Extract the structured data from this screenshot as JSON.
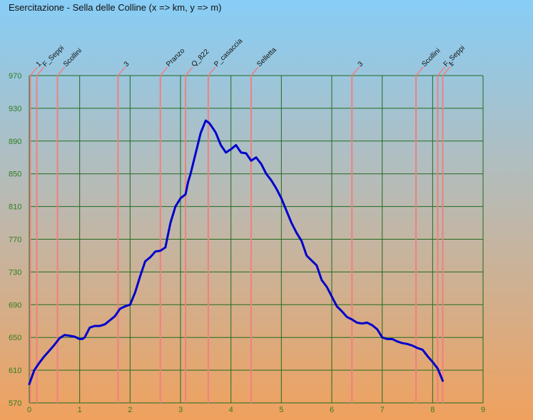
{
  "chart_data": {
    "type": "line",
    "title": "Esercitazione - Sella delle Colline (x => km, y => m)",
    "xlim": [
      0,
      9
    ],
    "ylim": [
      570,
      970
    ],
    "xticks": [
      "0",
      "1",
      "2",
      "3",
      "4",
      "5",
      "6",
      "7",
      "8",
      "9"
    ],
    "yticks": [
      "570",
      "610",
      "650",
      "690",
      "730",
      "770",
      "810",
      "850",
      "890",
      "930",
      "970"
    ],
    "grid": true,
    "colors": {
      "line": "#0000cc",
      "grid": "#1f6b1f",
      "marker": "#f08080",
      "tick": "#2e7d1f"
    },
    "markers": [
      {
        "label": "1",
        "x": 0.02
      },
      {
        "label": "F_Seppi",
        "x": 0.15
      },
      {
        "label": "Scollini",
        "x": 0.56
      },
      {
        "label": "3",
        "x": 1.76
      },
      {
        "label": "Pranzo",
        "x": 2.6
      },
      {
        "label": "Q_822",
        "x": 3.1
      },
      {
        "label": "P_casaccia",
        "x": 3.55
      },
      {
        "label": "Selletta",
        "x": 4.4
      },
      {
        "label": "3",
        "x": 6.4
      },
      {
        "label": "Scollini",
        "x": 7.67
      },
      {
        "label": "F_Seppi",
        "x": 8.1
      },
      {
        "label": "1",
        "x": 8.2
      }
    ],
    "series": [
      {
        "x": [
          0,
          0.1,
          0.2,
          0.3,
          0.4,
          0.5,
          0.6,
          0.7,
          0.8,
          0.9,
          1.0,
          1.05,
          1.1,
          1.2,
          1.3,
          1.4,
          1.5,
          1.6,
          1.7,
          1.8,
          1.9,
          2.0,
          2.1,
          2.2,
          2.3,
          2.4,
          2.5,
          2.6,
          2.7,
          2.75,
          2.8,
          2.9,
          3.0,
          3.1,
          3.15,
          3.2,
          3.3,
          3.4,
          3.5,
          3.57,
          3.65,
          3.7,
          3.8,
          3.9,
          4.0,
          4.1,
          4.2,
          4.3,
          4.4,
          4.5,
          4.6,
          4.7,
          4.8,
          4.9,
          5.0,
          5.1,
          5.2,
          5.3,
          5.4,
          5.5,
          5.6,
          5.7,
          5.8,
          5.9,
          6.0,
          6.1,
          6.2,
          6.3,
          6.4,
          6.5,
          6.6,
          6.7,
          6.8,
          6.9,
          7.0,
          7.1,
          7.2,
          7.3,
          7.4,
          7.5,
          7.6,
          7.7,
          7.8,
          7.9,
          8.0,
          8.1,
          8.2
        ],
        "y": [
          593,
          610,
          619,
          627,
          634,
          641,
          649,
          653,
          652,
          651,
          648,
          648,
          650,
          662,
          664,
          664,
          666,
          671,
          676,
          685,
          688,
          690,
          705,
          725,
          743,
          748,
          755,
          756,
          760,
          775,
          790,
          810,
          820,
          825,
          840,
          850,
          875,
          900,
          915,
          912,
          905,
          900,
          885,
          876,
          880,
          885,
          876,
          875,
          866,
          870,
          862,
          850,
          842,
          832,
          820,
          805,
          790,
          778,
          768,
          750,
          744,
          738,
          720,
          712,
          700,
          688,
          682,
          675,
          672,
          668,
          667,
          668,
          665,
          660,
          650,
          648,
          648,
          645,
          643,
          642,
          640,
          637,
          635,
          627,
          620,
          612,
          597
        ]
      }
    ]
  }
}
